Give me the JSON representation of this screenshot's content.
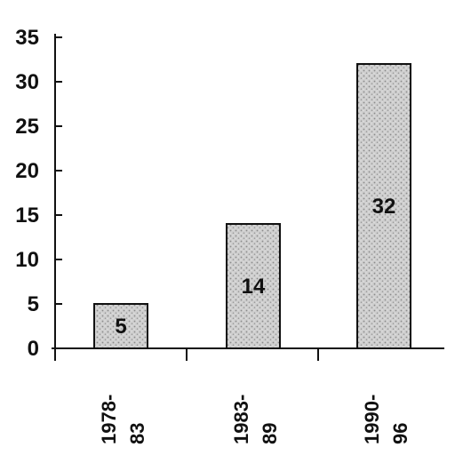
{
  "chart_data": {
    "type": "bar",
    "categories": [
      {
        "line1": "1978-",
        "line2": "83"
      },
      {
        "line1": "1983-",
        "line2": "89"
      },
      {
        "line1": "1990-",
        "line2": "96"
      }
    ],
    "values": [
      5,
      14,
      32
    ],
    "data_labels": [
      "5",
      "14",
      "32"
    ],
    "title": "",
    "xlabel": "",
    "ylabel": "",
    "ylim": [
      0,
      35
    ],
    "yticks": [
      "0",
      "5",
      "10",
      "15",
      "20",
      "25",
      "30",
      "35"
    ],
    "grid": false,
    "bar_fill": "#cfcfcf",
    "bar_stroke": "#111111",
    "axis_color": "#111111"
  }
}
